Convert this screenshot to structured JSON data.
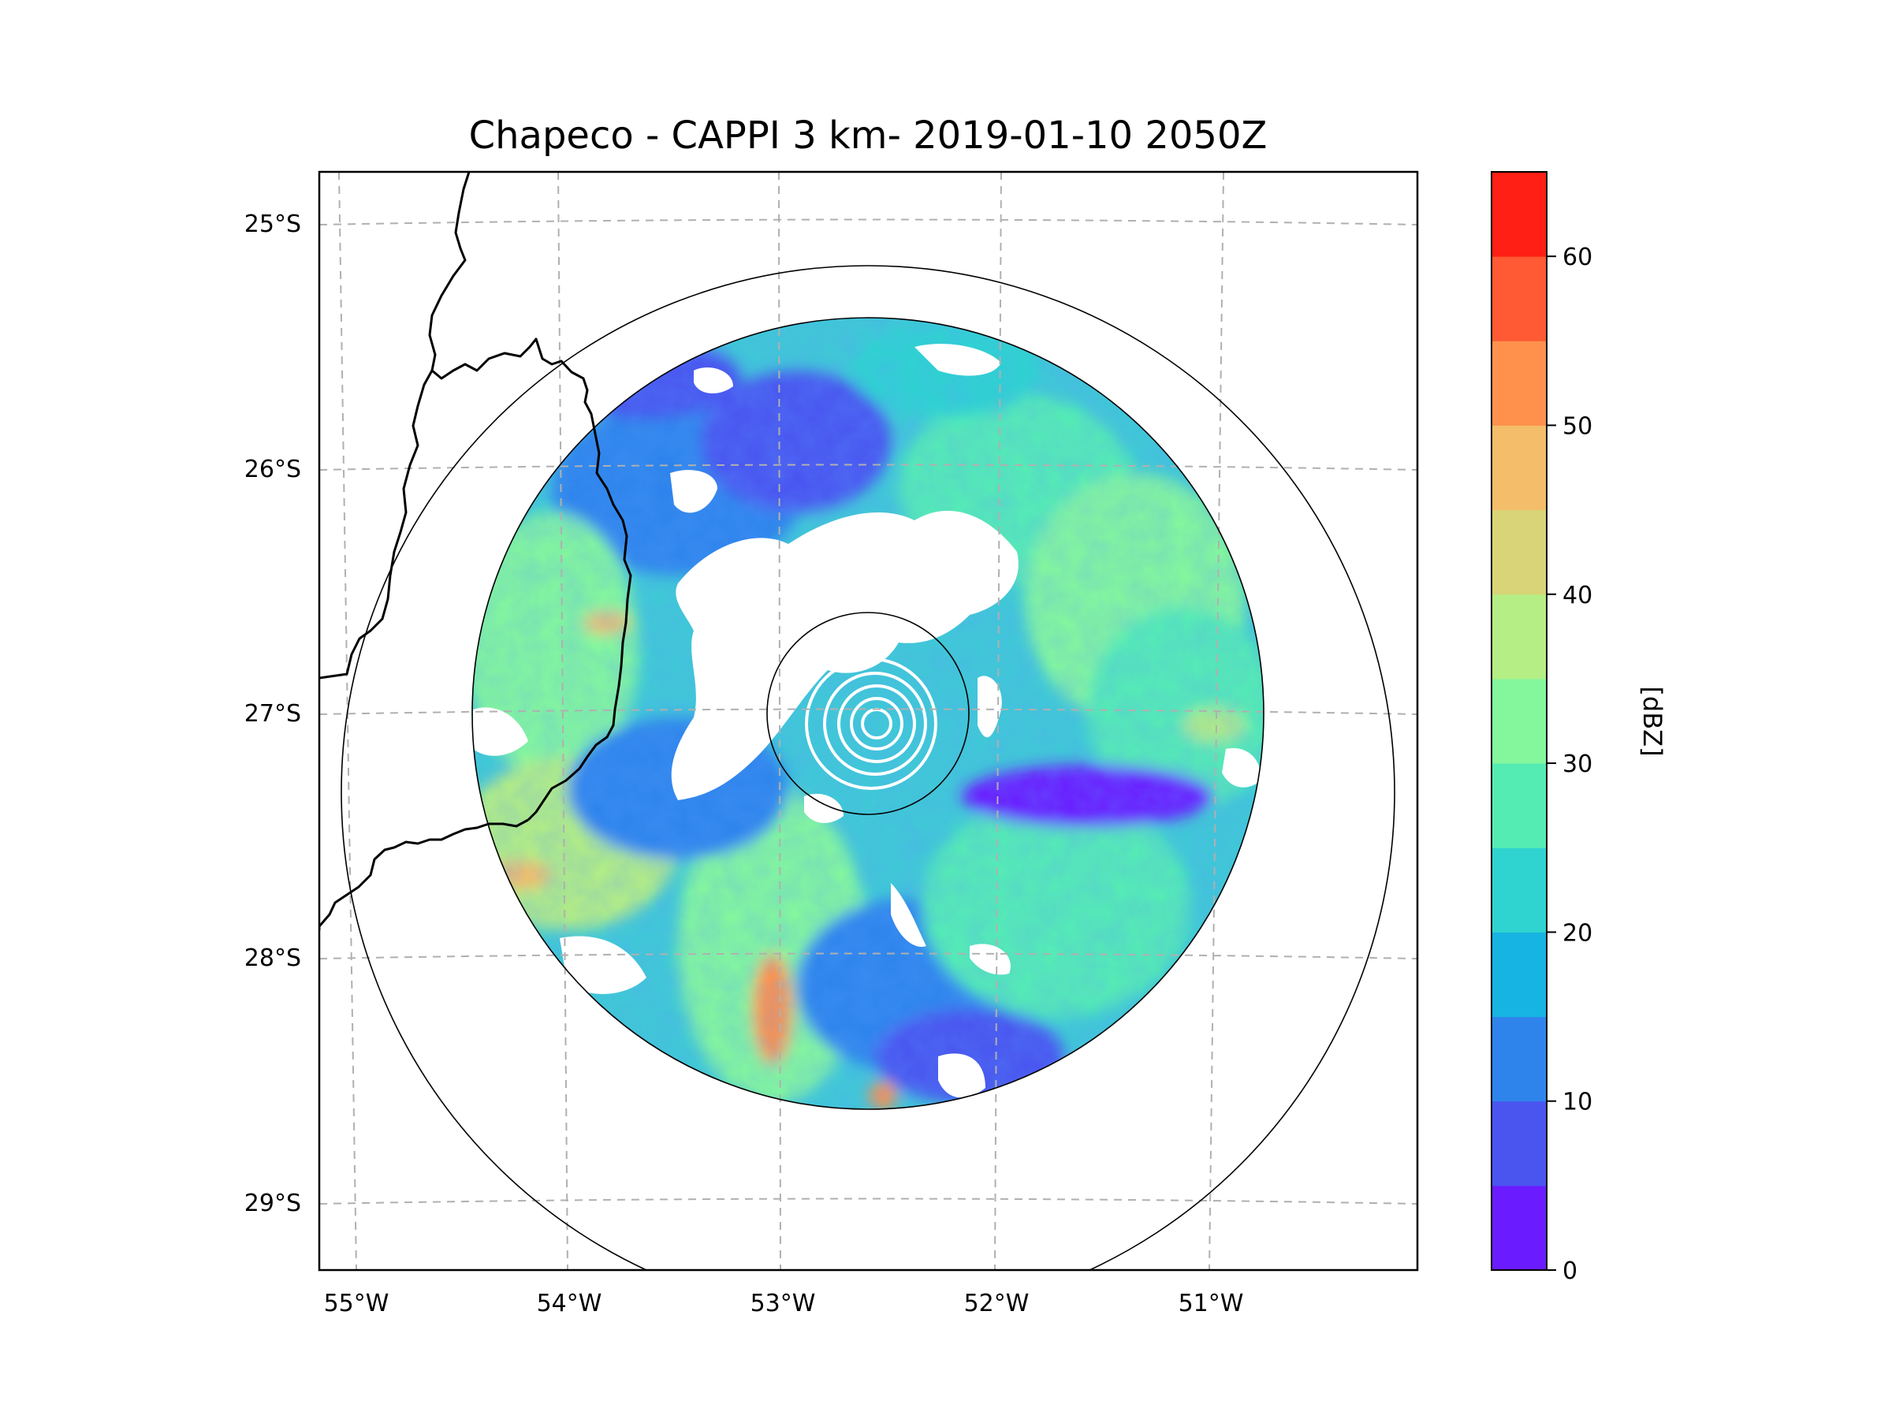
{
  "title": "Chapeco - CAPPI 3 km- 2019-01-10 2050Z",
  "map": {
    "lon_labels": [
      "55°W",
      "54°W",
      "53°W",
      "52°W",
      "51°W"
    ],
    "lat_labels": [
      "25°S",
      "26°S",
      "27°S",
      "28°S",
      "29°S"
    ],
    "gridlines": "dashed",
    "radar_site": "Chapeco"
  },
  "colorbar": {
    "label": "[dBZ]",
    "min": 0,
    "max": 65,
    "tick_values": [
      0,
      10,
      20,
      30,
      40,
      50,
      60
    ],
    "tick_labels": [
      "0",
      "10",
      "20",
      "30",
      "40",
      "50",
      "60"
    ],
    "bin_colors": [
      "#6a1bff",
      "#4a55f0",
      "#2f84ec",
      "#16b4e2",
      "#2fd4d0",
      "#55ecb4",
      "#84f79d",
      "#b4ee84",
      "#d8d477",
      "#f4bd6a",
      "#ff914d",
      "#ff5a33",
      "#ff1f14"
    ]
  },
  "colors": {
    "state_border": "#000000",
    "range_ring": "#000000",
    "grid": "#b0b0b0",
    "no_echo": "#ffffff"
  }
}
